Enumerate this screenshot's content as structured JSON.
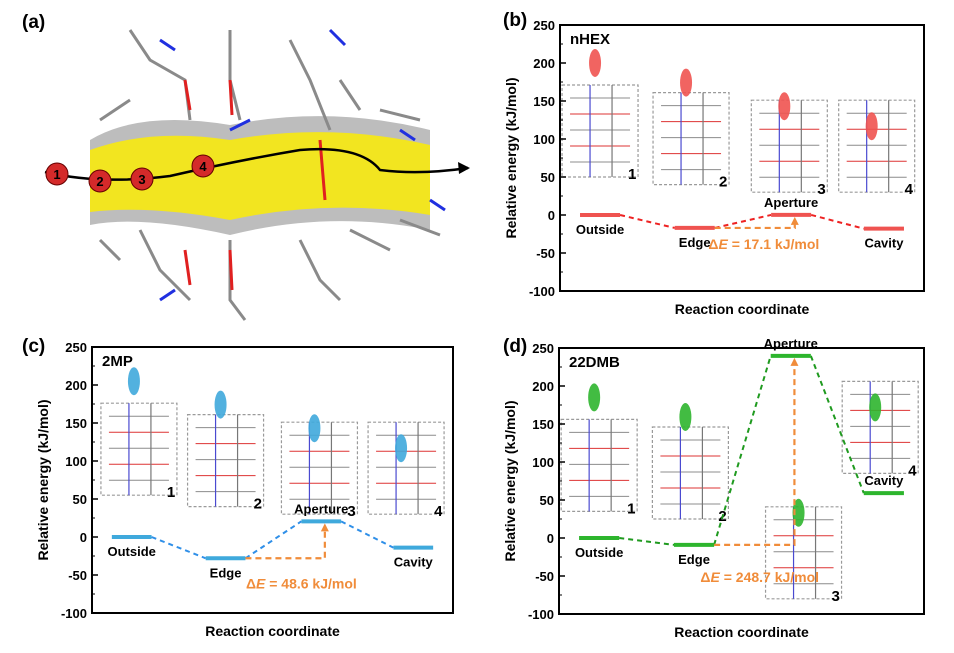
{
  "panel_a": {
    "label": "(a)",
    "site_numbers": [
      "1",
      "2",
      "3",
      "4"
    ]
  },
  "chart_data": [
    {
      "panel": "(b)",
      "type": "energy-level",
      "molecule": "nHEX",
      "ylabel": "Relative energy (kJ/mol)",
      "xlabel": "Reaction coordinate",
      "ylim": [
        -100,
        250
      ],
      "yticks": [
        250,
        200,
        150,
        100,
        50,
        0,
        -50,
        -100
      ],
      "states": [
        "Outside",
        "Edge",
        "Aperture",
        "Cavity"
      ],
      "values": [
        0,
        -17,
        0.1,
        -18
      ],
      "structure_labels": [
        "1",
        "2",
        "3",
        "4"
      ],
      "barrier_label_prefix": "Δ",
      "barrier_label_var": "E",
      "barrier_label": " = 17.1 kJ/mol",
      "barrier": 17.1,
      "color": "#ef5350"
    },
    {
      "panel": "(c)",
      "type": "energy-level",
      "molecule": "2MP",
      "ylabel": "Relative energy (kJ/mol)",
      "xlabel": "Reaction coordinate",
      "ylim": [
        -100,
        250
      ],
      "yticks": [
        250,
        200,
        150,
        100,
        50,
        0,
        -50,
        -100
      ],
      "states": [
        "Outside",
        "Edge",
        "Aperture",
        "Cavity"
      ],
      "values": [
        0,
        -28,
        20.6,
        -14
      ],
      "structure_labels": [
        "1",
        "2",
        "3",
        "4"
      ],
      "barrier_label_prefix": "Δ",
      "barrier_label_var": "E",
      "barrier_label": " = 48.6 kJ/mol",
      "barrier": 48.6,
      "color": "#3fa9dc"
    },
    {
      "panel": "(d)",
      "type": "energy-level",
      "molecule": "22DMB",
      "ylabel": "Relative energy (kJ/mol)",
      "xlabel": "Reaction coordinate",
      "ylim": [
        -100,
        250
      ],
      "yticks": [
        250,
        200,
        150,
        100,
        50,
        0,
        -50,
        -100
      ],
      "states": [
        "Outside",
        "Edge",
        "Aperture",
        "Cavity"
      ],
      "values": [
        0,
        -9,
        239.7,
        59
      ],
      "structure_labels": [
        "1",
        "2",
        "3",
        "4"
      ],
      "barrier_label_prefix": "Δ",
      "barrier_label_var": "E",
      "barrier_label": " = 248.7 kJ/mol",
      "barrier": 248.7,
      "color": "#2db52d"
    }
  ],
  "colors": {
    "arrow": "#f08c3a",
    "frame": "#000000"
  }
}
